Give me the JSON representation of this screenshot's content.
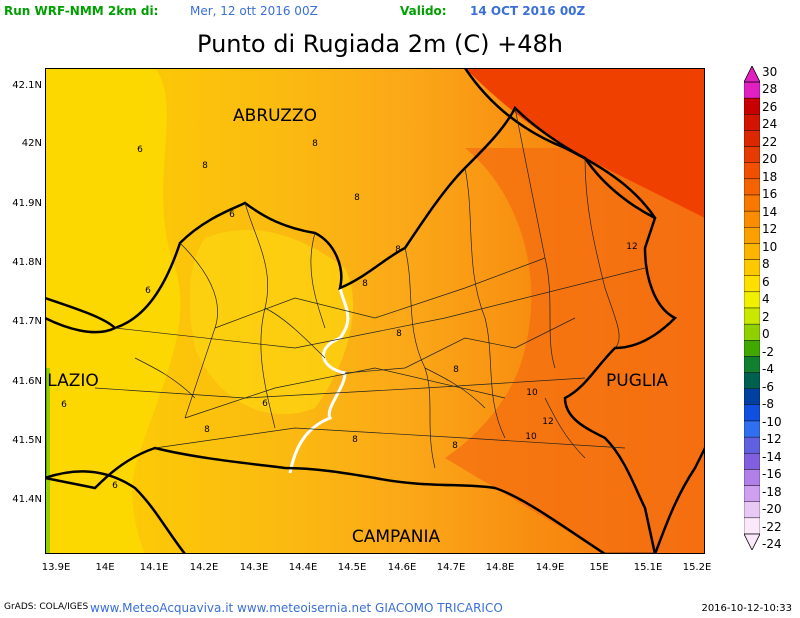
{
  "header": {
    "run_label": "Run WRF-NMM 2km di:",
    "run_date": "Mer, 12 ott 2016 00Z",
    "valid_label": "Valido:",
    "valid_date": "14 OCT 2016 00Z"
  },
  "title": "Punto di Rugiada 2m (C) +48h",
  "axes": {
    "y_ticks": [
      "42.1N",
      "42N",
      "41.9N",
      "41.8N",
      "41.7N",
      "41.6N",
      "41.5N",
      "41.4N"
    ],
    "x_ticks": [
      "13.9E",
      "14E",
      "14.1E",
      "14.2E",
      "14.3E",
      "14.4E",
      "14.5E",
      "14.6E",
      "14.7E",
      "14.8E",
      "14.9E",
      "15E",
      "15.1E",
      "15.2E"
    ]
  },
  "regions": {
    "abruzzo": "ABRUZZO",
    "lazio": "LAZIO",
    "puglia": "PUGLIA",
    "campania": "CAMPANIA"
  },
  "contour_labels": [
    "6",
    "8",
    "8",
    "6",
    "8",
    "8",
    "8",
    "8",
    "6",
    "8",
    "6",
    "8",
    "8",
    "10",
    "12",
    "10",
    "12",
    "6",
    "8",
    "6"
  ],
  "colorbar": {
    "values": [
      "30",
      "28",
      "26",
      "24",
      "22",
      "20",
      "18",
      "16",
      "14",
      "12",
      "10",
      "8",
      "6",
      "4",
      "2",
      "0",
      "-2",
      "-4",
      "-6",
      "-8",
      "-10",
      "-12",
      "-14",
      "-16",
      "-18",
      "-20",
      "-22",
      "-24"
    ],
    "colors": [
      "#e020c0",
      "#c80000",
      "#d21400",
      "#dc2800",
      "#e63c00",
      "#f05000",
      "#f56400",
      "#f87800",
      "#fa8c00",
      "#fba000",
      "#fbb400",
      "#fcc800",
      "#fde000",
      "#f0f000",
      "#c8e800",
      "#90d000",
      "#40a800",
      "#108030",
      "#006050",
      "#0040a0",
      "#1050e0",
      "#3070f0",
      "#6060e0",
      "#8060e0",
      "#b080e8",
      "#d0a0f0",
      "#e8c8f4",
      "#fbe8fa"
    ],
    "colors_note": "colorbar swatches top to bottom"
  },
  "footer": {
    "credit": "GrADS: COLA/IGES",
    "sites": "www.MeteoAcquaviva.it www.meteoisernia.net GIACOMO TRICARICO",
    "timestamp": "2016-10-12-10:33"
  }
}
